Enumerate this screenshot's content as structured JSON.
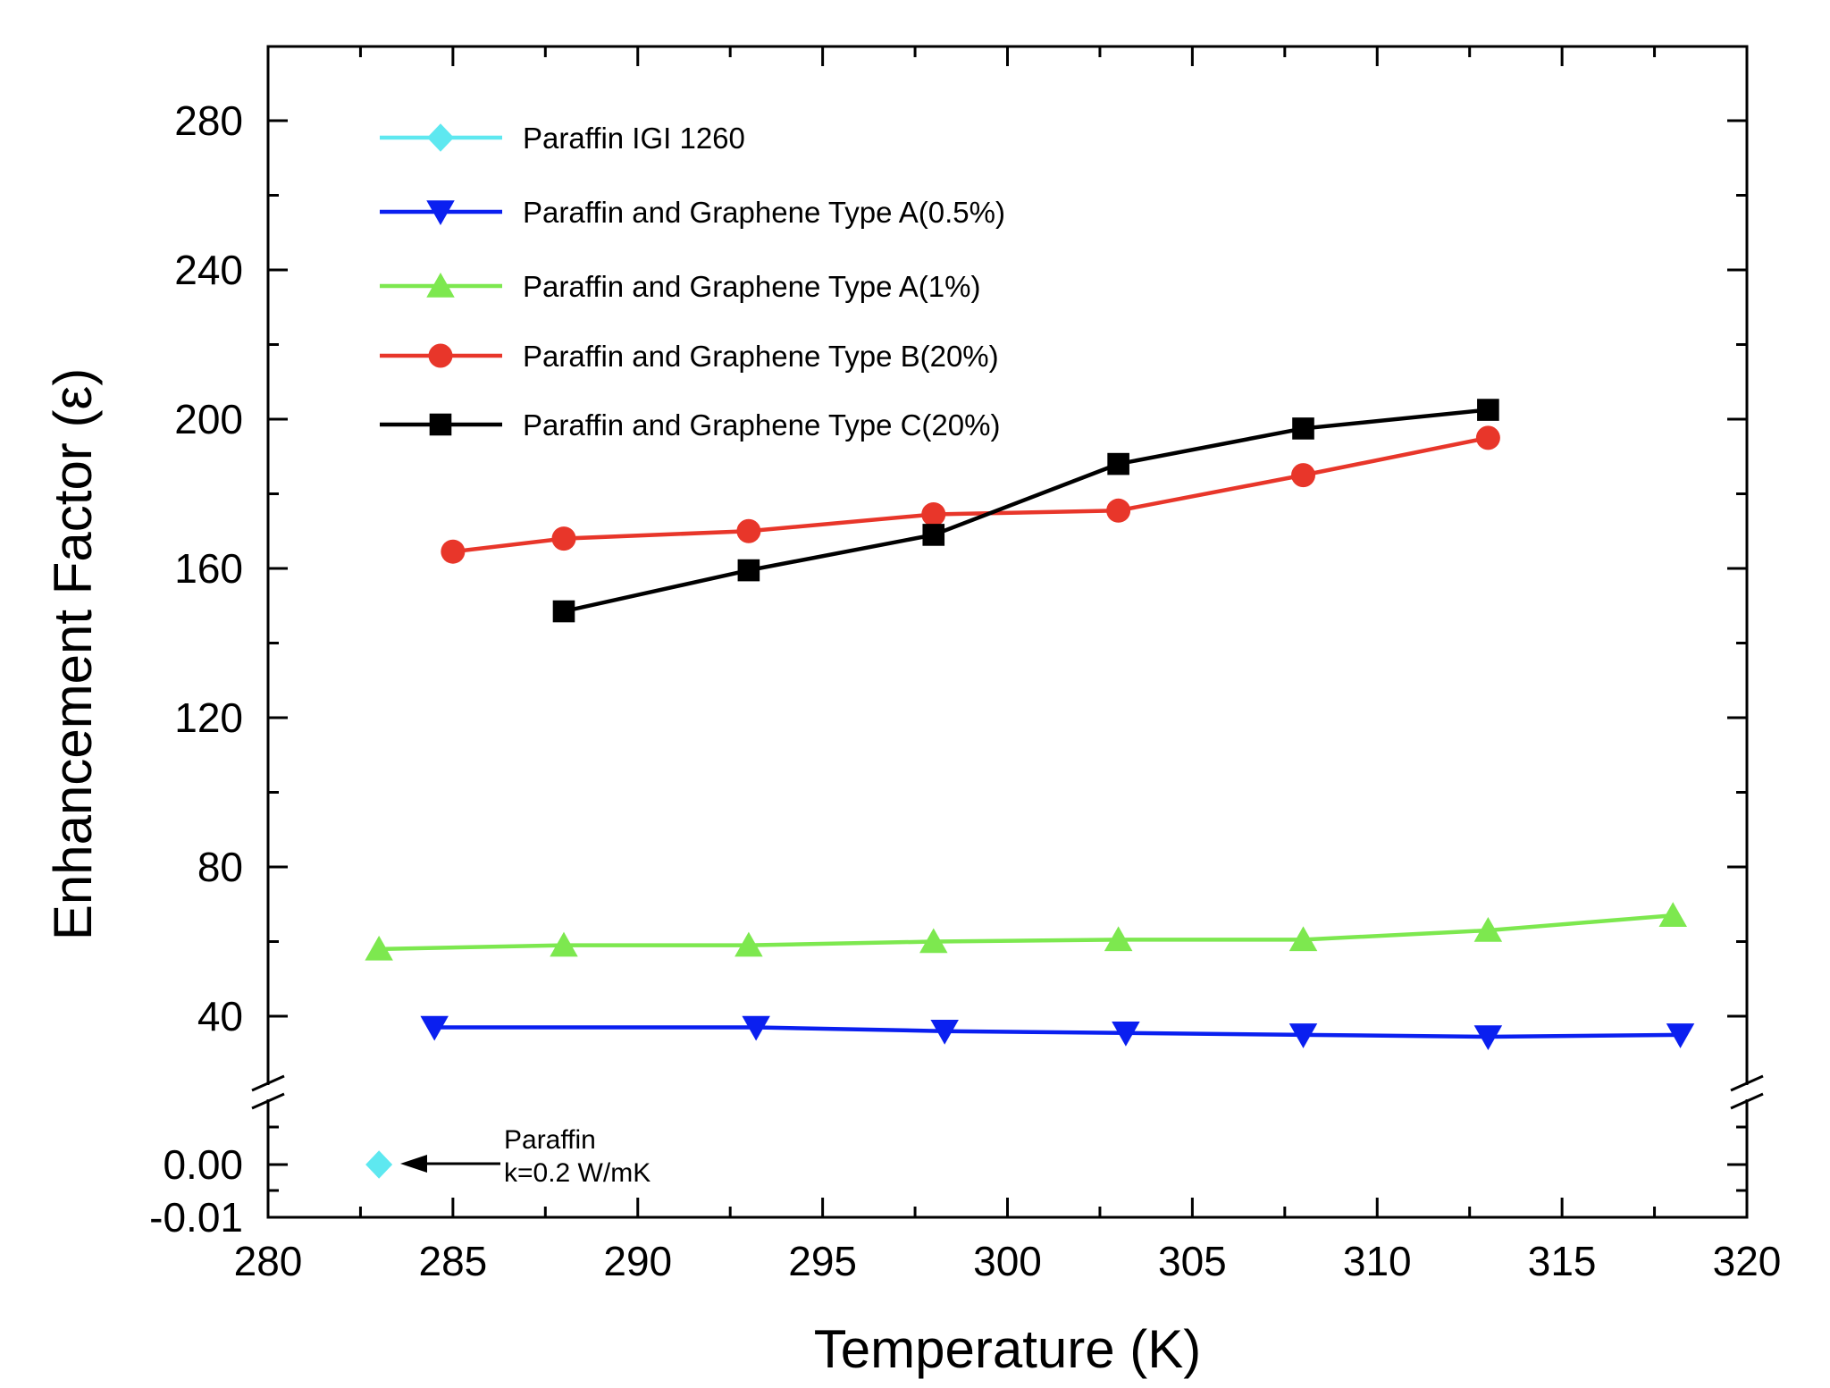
{
  "chart_data": {
    "type": "line",
    "xlabel": "Temperature (K)",
    "ylabel": "Enhancement Factor (ε)",
    "xlim": [
      280,
      320
    ],
    "x_ticks": [
      280,
      285,
      290,
      295,
      300,
      305,
      310,
      315,
      320
    ],
    "y_upper_range": [
      25,
      300
    ],
    "y_upper_ticks": [
      40,
      80,
      120,
      160,
      200,
      240,
      280
    ],
    "y_lower_range": [
      -0.01,
      0.015
    ],
    "y_lower_ticks": [
      "0.00",
      "-0.01"
    ],
    "axis_break": true,
    "grid": false,
    "legend_position": "top-left",
    "series": [
      {
        "name": "Paraffin IGI 1260",
        "color": "#5ee8f0",
        "marker": "diamond",
        "axis": "lower",
        "x": [
          283
        ],
        "y": [
          0.0
        ]
      },
      {
        "name": "Paraffin and Graphene Type A(0.5%)",
        "color": "#0a1ff0",
        "marker": "triangle-down",
        "axis": "upper",
        "x": [
          284.5,
          293.2,
          298.3,
          303.2,
          308,
          313,
          318.2
        ],
        "y": [
          37,
          37,
          36,
          35.5,
          35,
          34.5,
          35
        ]
      },
      {
        "name": "Paraffin and Graphene Type A(1%)",
        "color": "#7de84f",
        "marker": "triangle-up",
        "axis": "upper",
        "x": [
          283,
          288,
          293,
          298,
          303,
          308,
          313,
          318
        ],
        "y": [
          58,
          59,
          59,
          60,
          60.5,
          60.5,
          63,
          67
        ]
      },
      {
        "name": "Paraffin and Graphene Type B(20%)",
        "color": "#e8362a",
        "marker": "circle",
        "axis": "upper",
        "x": [
          285,
          288,
          293,
          298,
          303,
          308,
          313
        ],
        "y": [
          164.5,
          168,
          170,
          174.5,
          175.5,
          185,
          195
        ]
      },
      {
        "name": "Paraffin and Graphene Type C(20%)",
        "color": "#000000",
        "marker": "square",
        "axis": "upper",
        "x": [
          288,
          293,
          298,
          303,
          308,
          313
        ],
        "y": [
          148.5,
          159.5,
          169,
          188,
          197.5,
          202.5
        ]
      }
    ],
    "annotations": [
      {
        "text": "Paraffin",
        "line": 1
      },
      {
        "text": "k=0.2 W/mK",
        "line": 2
      }
    ]
  }
}
